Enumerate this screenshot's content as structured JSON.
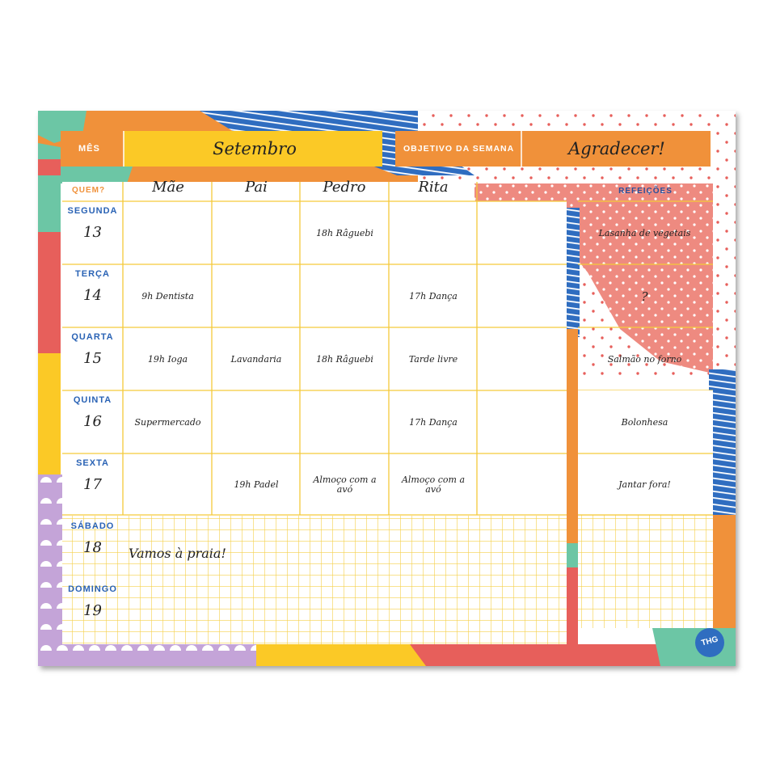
{
  "header": {
    "month_label": "MÊS",
    "month_value": "Setembro",
    "goal_label": "OBJETIVO DA SEMANA",
    "goal_value": "Agradecer!"
  },
  "table": {
    "who_label": "QUEM?",
    "people": [
      "Mãe",
      "Pai",
      "Pedro",
      "Rita",
      ""
    ],
    "meals_label": "REFEIÇÕES",
    "days": [
      {
        "name": "SEGUNDA",
        "num": "13",
        "cells": [
          "",
          "",
          "18h Râguebi",
          "",
          ""
        ],
        "meal": "Lasanha de vegetais"
      },
      {
        "name": "TERÇA",
        "num": "14",
        "cells": [
          "9h Dentista",
          "",
          "",
          "17h Dança",
          ""
        ],
        "meal": "?"
      },
      {
        "name": "QUARTA",
        "num": "15",
        "cells": [
          "19h Ioga",
          "Lavandaria",
          "18h Râguebi",
          "Tarde livre",
          ""
        ],
        "meal": "Salmão no forno"
      },
      {
        "name": "QUINTA",
        "num": "16",
        "cells": [
          "Supermercado",
          "",
          "",
          "17h Dança",
          ""
        ],
        "meal": "Bolonhesa"
      },
      {
        "name": "SEXTA",
        "num": "17",
        "cells": [
          "",
          "19h Padel",
          "Almoço com a avó",
          "Almoço com a avó",
          ""
        ],
        "meal": "Jantar fora!"
      }
    ],
    "weekend": [
      {
        "name": "SÁBADO",
        "num": "18"
      },
      {
        "name": "DOMINGO",
        "num": "19"
      }
    ],
    "weekend_note": "Vamos à praia!"
  },
  "logo": "THG",
  "colors": {
    "orange": "#f0913a",
    "yellow": "#fbc926",
    "blue": "#2f6dc0",
    "coral": "#ee7f73",
    "red": "#e75f5b",
    "green": "#6cc6a5",
    "lilac": "#c4a4d8",
    "grid_line": "#f5d04a"
  }
}
